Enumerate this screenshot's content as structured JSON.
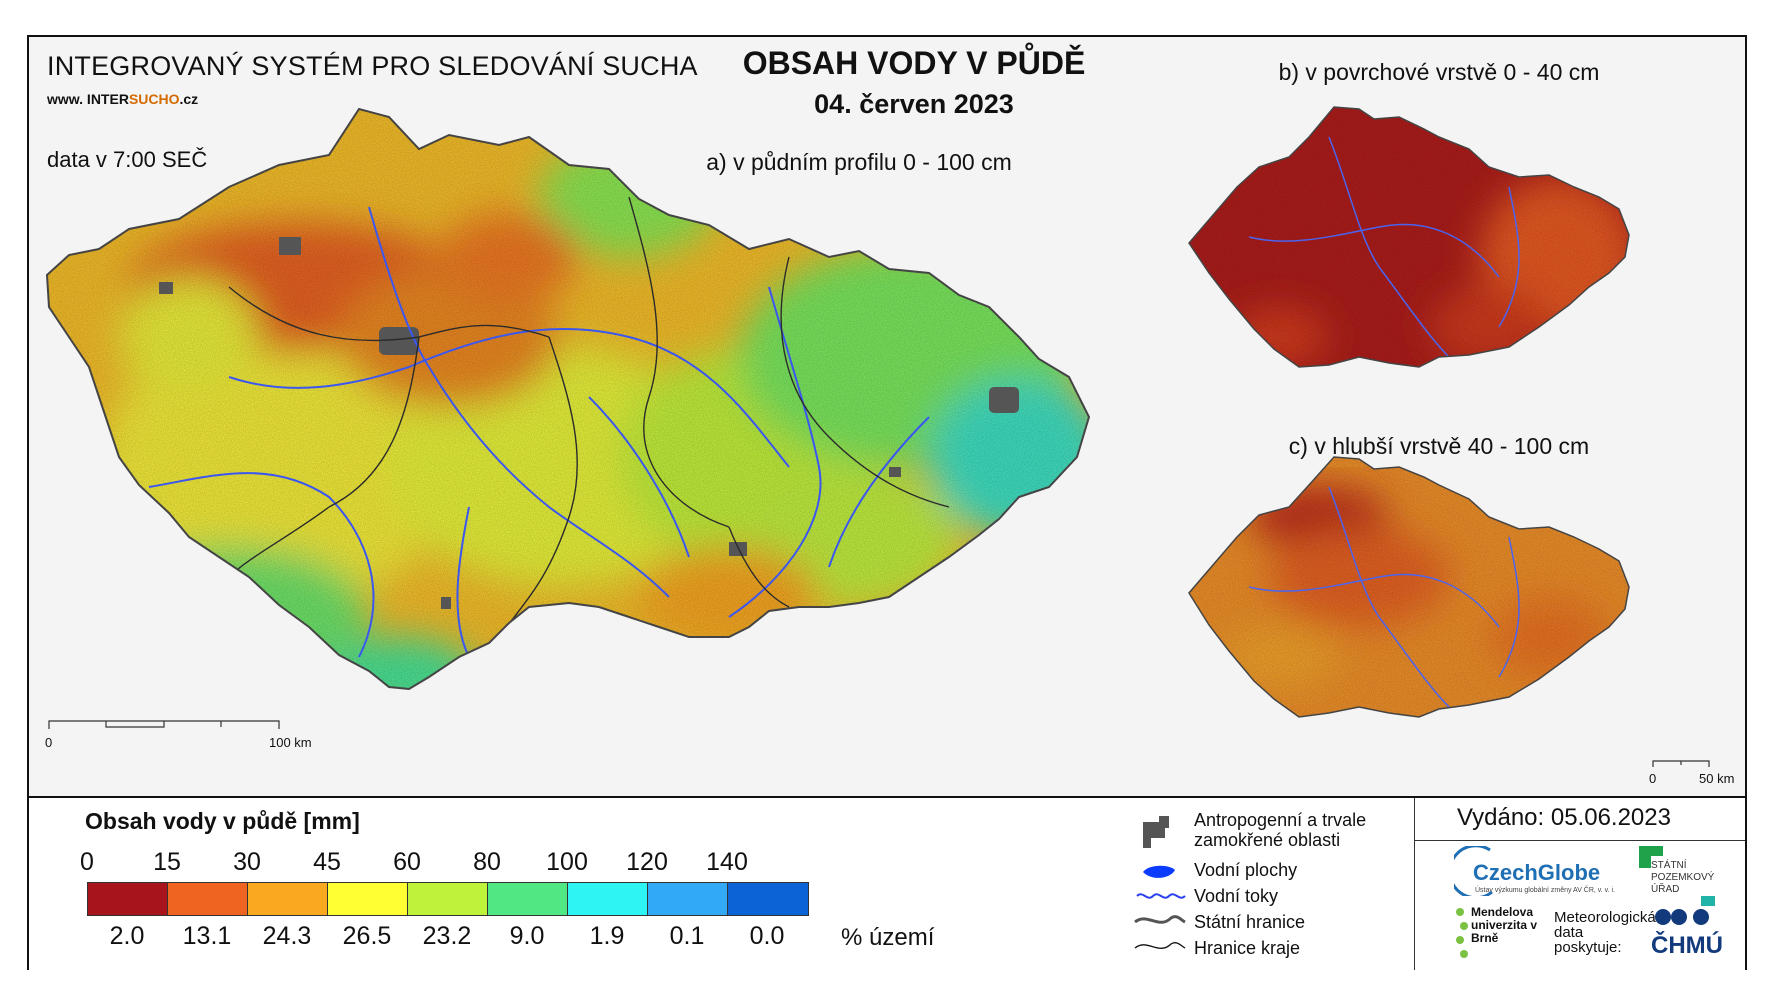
{
  "header": {
    "system_title": "INTEGROVANÝ SYSTÉM PRO SLEDOVÁNÍ SUCHA",
    "website_prefix": "www. INTER",
    "website_highlight": "SUCHO",
    "website_suffix": ".cz",
    "data_time": "data v 7:00 SEČ",
    "main_title": "OBSAH VODY V PŮDĚ",
    "date": "04. červen 2023"
  },
  "panels": {
    "a": "a) v půdním profilu 0 - 100 cm",
    "b": "b) v povrchové vrstvě 0 - 40 cm",
    "c": "c) v hlubší vrstvě 40 - 100 cm"
  },
  "scalebars": {
    "main": {
      "start": "0",
      "end": "100 km"
    },
    "small": {
      "start": "0",
      "end": "50 km"
    }
  },
  "legend": {
    "title": "Obsah vody v půdě  [mm]",
    "ticks": [
      "0",
      "15",
      "30",
      "45",
      "60",
      "80",
      "100",
      "120",
      "140"
    ],
    "colors": [
      "#a8141b",
      "#ee6420",
      "#f9a820",
      "#ffff33",
      "#bff33b",
      "#4fe882",
      "#2ef4f4",
      "#31a9f4",
      "#0b63d6"
    ],
    "percentages": [
      "2.0",
      "13.1",
      "24.3",
      "26.5",
      "23.2",
      "9.0",
      "1.9",
      "0.1",
      "0.0"
    ],
    "percent_unit": "% území"
  },
  "symbols": {
    "anthropogenic": "Antropogenní a trvale zamokřené oblasti",
    "water_bodies": "Vodní plochy",
    "streams": "Vodní toky",
    "state_border": "Státní hranice",
    "region_border": "Hranice kraje"
  },
  "issued": "Vydáno: 05.06.2023",
  "logos": {
    "czechglobe": "CzechGlobe",
    "czechglobe_sub": "Ústav výzkumu globální změny AV ČR, v. v. i.",
    "spu": "STÁTNÍ POZEMKOVÝ ÚŘAD",
    "mendel": "Mendelova univerzita v Brně",
    "met_data": "Meteorologická data poskytuje:",
    "chmu": "ČHMÚ"
  }
}
